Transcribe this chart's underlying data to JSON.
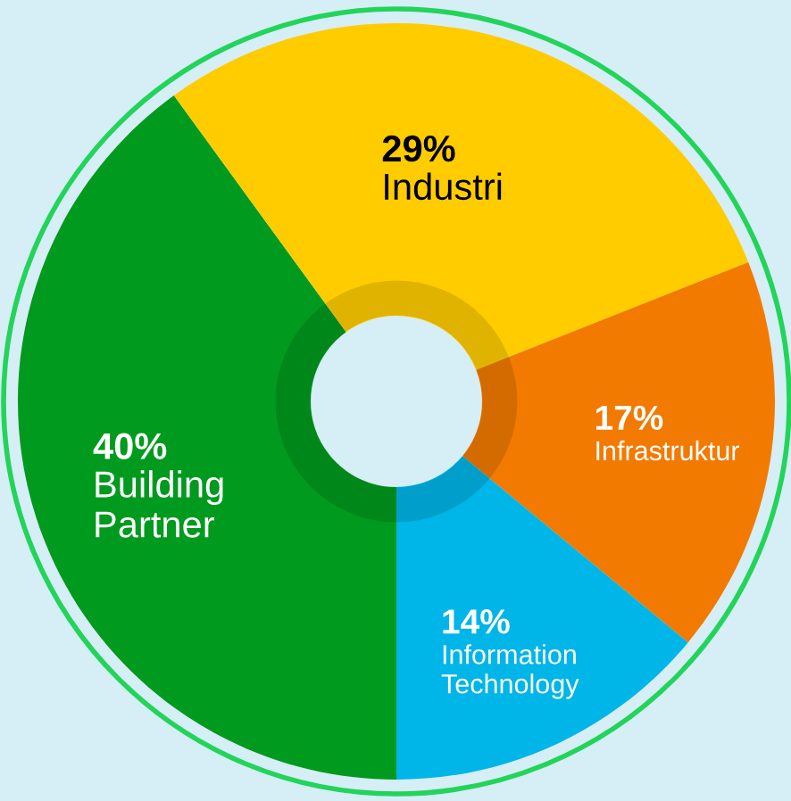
{
  "chart_data": {
    "type": "donut",
    "categories": [
      "Building Partner",
      "Industri",
      "Infrastruktur",
      "Information Technology"
    ],
    "values": [
      40,
      29,
      17,
      14
    ],
    "value_labels": [
      "40%",
      "29%",
      "17%",
      "14%"
    ],
    "colors": [
      "#009a1e",
      "#ffcc00",
      "#f27a00",
      "#00b5e8"
    ]
  }
}
